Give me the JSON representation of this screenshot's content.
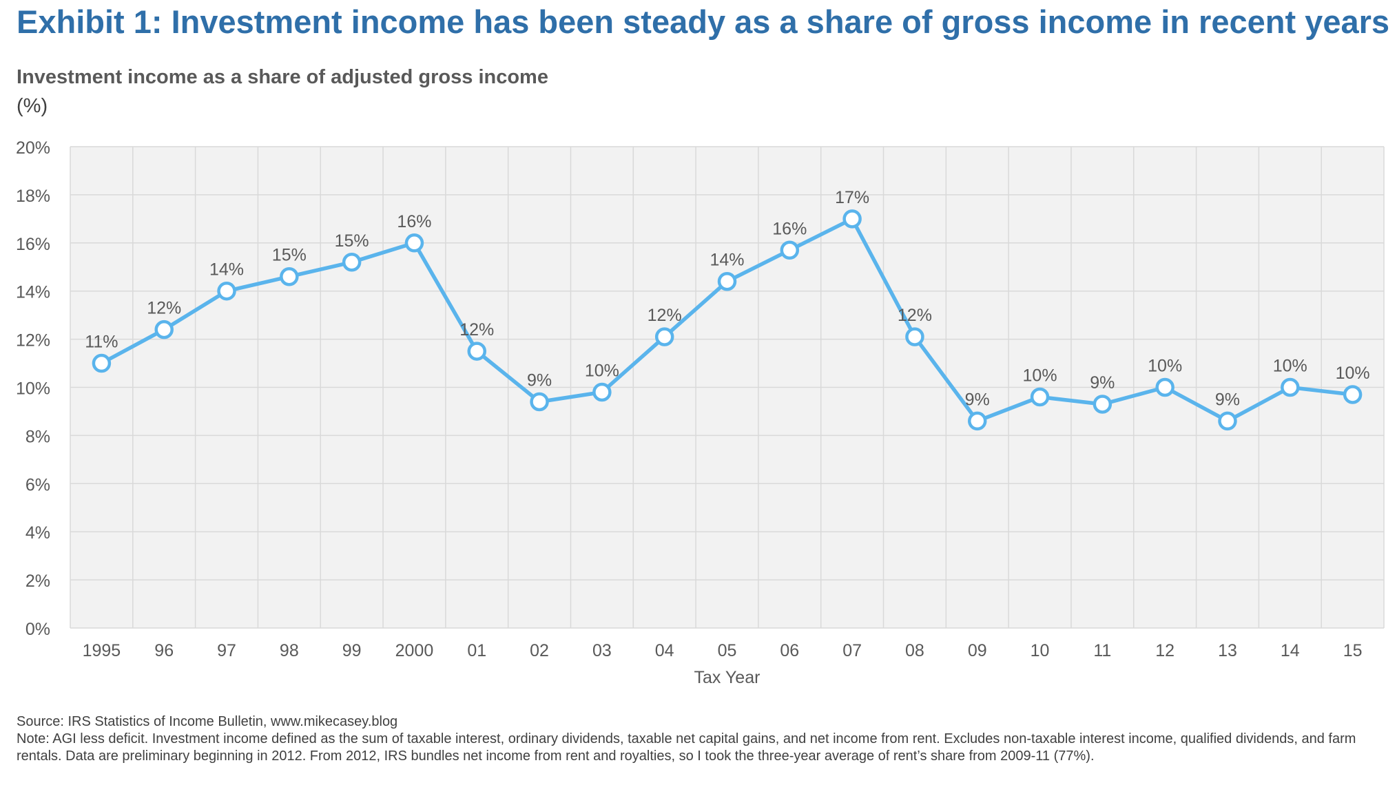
{
  "header": {
    "title": "Exhibit 1: Investment income has been steady as a share of gross income in recent years",
    "subtitle": "Investment income as a share of adjusted gross income",
    "unit": "(%)"
  },
  "footer": {
    "source": "Source: IRS Statistics of Income Bulletin, www.mikecasey.blog",
    "note": "Note: AGI less deficit. Investment income defined as the sum of taxable interest, ordinary dividends, taxable net capital gains, and net income from rent. Excludes non-taxable interest income, qualified dividends, and farm rentals. Data are preliminary beginning in 2012. From 2012, IRS bundles net income from rent and royalties, so I took the three-year average of rent’s share from 2009-11 (77%)."
  },
  "chart_data": {
    "type": "line",
    "title": "Investment income as a share of adjusted gross income",
    "xlabel": "Tax Year",
    "ylabel": "(%)",
    "ylim": [
      0,
      20
    ],
    "yticks": [
      0,
      2,
      4,
      6,
      8,
      10,
      12,
      14,
      16,
      18,
      20
    ],
    "ytick_format": "{v}%",
    "grid": true,
    "legend": "none",
    "categories": [
      "1995",
      "96",
      "97",
      "98",
      "99",
      "2000",
      "01",
      "02",
      "03",
      "04",
      "05",
      "06",
      "07",
      "08",
      "09",
      "10",
      "11",
      "12",
      "13",
      "14",
      "15"
    ],
    "series": [
      {
        "color": "#5ab4ec",
        "values": [
          11.0,
          12.4,
          14.0,
          14.6,
          15.2,
          16.0,
          11.5,
          9.4,
          9.8,
          12.1,
          14.4,
          15.7,
          17.0,
          12.1,
          8.6,
          9.6,
          9.3,
          10.0,
          8.6,
          10.0,
          9.7
        ],
        "data_labels": [
          "11%",
          "12%",
          "14%",
          "15%",
          "15%",
          "16%",
          "12%",
          "9%",
          "10%",
          "12%",
          "14%",
          "16%",
          "17%",
          "12%",
          "9%",
          "10%",
          "9%",
          "10%",
          "9%",
          "10%",
          "10%"
        ]
      }
    ],
    "colors": {
      "plot_background": "#f2f2f2",
      "gridline": "#d9d9d9",
      "text": "#595959",
      "title": "#2f6fa9"
    }
  }
}
